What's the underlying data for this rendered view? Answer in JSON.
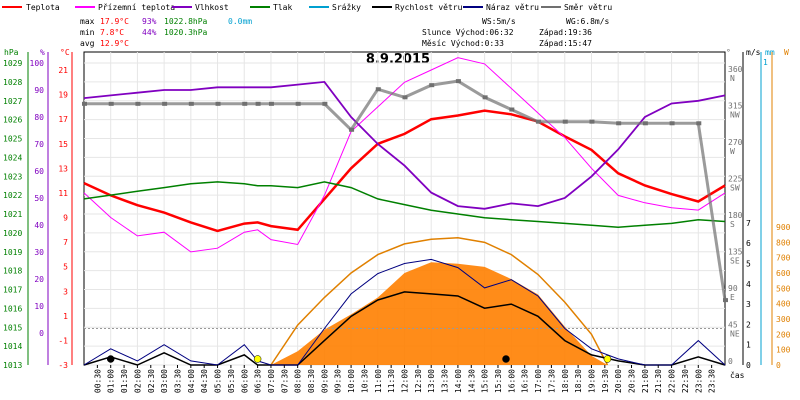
{
  "chart_data": {
    "type": "line",
    "title": "8.9.2015",
    "legend": [
      {
        "label": "Teplota",
        "color": "#ff0000"
      },
      {
        "label": "Přízemní teplota",
        "color": "#ff00ff"
      },
      {
        "label": "Vlhkost",
        "color": "#8000c0"
      },
      {
        "label": "Tlak",
        "color": "#008000"
      },
      {
        "label": "Srážky",
        "color": "#00a0d0"
      },
      {
        "label": "Rychlost větru",
        "color": "#000000"
      },
      {
        "label": "Náraz větru",
        "color": "#000080"
      },
      {
        "label": "Směr větru",
        "color": "#707070"
      }
    ],
    "stats": {
      "max": {
        "label": "max",
        "temp": "17.9°C",
        "hum": "93%",
        "press": "1022.8hPa",
        "rain": "0.0mm"
      },
      "min": {
        "label": "min",
        "temp": "7.8°C",
        "hum": "44%",
        "press": "1020.3hPa"
      },
      "avg": {
        "label": "avg",
        "temp": "12.9°C"
      }
    },
    "wind_info": {
      "ws": "WS:5m/s",
      "wg": "WG:6.8m/s"
    },
    "sun_info": {
      "rise": "Slunce Východ:06:32",
      "set": "Západ:19:36"
    },
    "moon_info": {
      "rise": "Měsíc Východ:0:33",
      "set": "Západ:15:47"
    },
    "axes": {
      "hpa_label": "hPa",
      "pct_label": "%",
      "degc_label": "°C",
      "deg_label": "°",
      "ms_label": "m/s",
      "mm_label": "mm",
      "w_label": "W",
      "time_label": "čas",
      "hpa_ticks": [
        "1029",
        "1028",
        "1027",
        "1026",
        "1025",
        "1024",
        "1023",
        "1022",
        "1021",
        "1020",
        "1019",
        "1018",
        "1017",
        "1016",
        "1015",
        "1014",
        "1013"
      ],
      "pct_ticks": [
        "100",
        "90",
        "80",
        "70",
        "60",
        "50",
        "40",
        "30",
        "20",
        "10",
        "0"
      ],
      "degc_ticks": [
        "21",
        "19",
        "17",
        "15",
        "13",
        "11",
        "9",
        "7",
        "5",
        "3",
        "1",
        "-1",
        "-3"
      ],
      "dir_ticks": [
        {
          "deg": "360",
          "dir": "N"
        },
        {
          "deg": "315",
          "dir": "NW"
        },
        {
          "deg": "270",
          "dir": "W"
        },
        {
          "deg": "225",
          "dir": "SW"
        },
        {
          "deg": "180",
          "dir": "S"
        },
        {
          "deg": "135",
          "dir": "SE"
        },
        {
          "deg": "90",
          "dir": "E"
        },
        {
          "deg": "45",
          "dir": "NE"
        },
        {
          "deg": "0",
          "dir": ""
        }
      ],
      "ms_ticks": [
        "7",
        "6",
        "5",
        "4",
        "3",
        "2",
        "1",
        "0"
      ],
      "w_ticks": [
        "900",
        "800",
        "700",
        "600",
        "500",
        "400",
        "300",
        "200",
        "100",
        "0"
      ],
      "ms_top": "1",
      "time_ticks": [
        "00:30",
        "01:00",
        "01:30",
        "02:00",
        "02:30",
        "03:00",
        "03:30",
        "04:00",
        "04:30",
        "05:00",
        "05:30",
        "06:00",
        "06:30",
        "07:00",
        "07:30",
        "08:00",
        "08:30",
        "09:00",
        "09:30",
        "10:00",
        "10:30",
        "11:00",
        "11:30",
        "12:00",
        "12:30",
        "13:00",
        "13:30",
        "14:00",
        "14:30",
        "15:00",
        "15:30",
        "16:00",
        "16:30",
        "17:00",
        "17:30",
        "18:00",
        "18:30",
        "19:00",
        "19:30",
        "20:00",
        "20:30",
        "21:00",
        "21:30",
        "22:00",
        "22:30",
        "23:00",
        "23:30"
      ]
    },
    "x_hours": [
      0,
      1,
      2,
      3,
      4,
      5,
      6,
      6.5,
      7,
      8,
      9,
      10,
      11,
      12,
      13,
      14,
      15,
      16,
      17,
      18,
      19,
      20,
      21,
      22,
      23,
      24
    ],
    "series": [
      {
        "name": "Teplota",
        "unit": "°C",
        "color": "#ff0000",
        "values": [
          11.8,
          10.8,
          10.0,
          9.4,
          8.6,
          7.9,
          8.5,
          8.6,
          8.3,
          8.0,
          10.5,
          13.0,
          15.0,
          15.8,
          17.0,
          17.3,
          17.7,
          17.4,
          16.8,
          15.6,
          14.5,
          12.6,
          11.6,
          10.9,
          10.3,
          11.6
        ]
      },
      {
        "name": "Přízemní teplota",
        "unit": "°C",
        "color": "#ff00ff",
        "values": [
          11.0,
          9.0,
          7.5,
          7.8,
          6.2,
          6.5,
          7.8,
          8.0,
          7.2,
          6.8,
          10.8,
          16.0,
          18.0,
          20.0,
          21.0,
          22.0,
          21.5,
          19.5,
          17.5,
          15.5,
          13.0,
          10.8,
          10.2,
          9.8,
          9.6,
          11.0
        ]
      },
      {
        "name": "Vlhkost",
        "unit": "%",
        "color": "#8000c0",
        "values": [
          87,
          88,
          89,
          90,
          90,
          91,
          91,
          91,
          91,
          92,
          93,
          80,
          70,
          62,
          52,
          47,
          46,
          48,
          47,
          50,
          58,
          68,
          80,
          85,
          86,
          88
        ]
      },
      {
        "name": "Tlak",
        "unit": "hPa",
        "color": "#008000",
        "values": [
          1021.8,
          1022.0,
          1022.2,
          1022.4,
          1022.6,
          1022.7,
          1022.6,
          1022.5,
          1022.5,
          1022.4,
          1022.7,
          1022.4,
          1021.8,
          1021.5,
          1021.2,
          1021.0,
          1020.8,
          1020.7,
          1020.6,
          1020.5,
          1020.4,
          1020.3,
          1020.4,
          1020.5,
          1020.7,
          1020.6
        ]
      },
      {
        "name": "Rychlost větru",
        "unit": "m/s",
        "color": "#000000",
        "values": [
          0,
          0.4,
          0,
          0.6,
          0,
          0,
          0.5,
          0,
          0,
          0,
          1.2,
          2.4,
          3.2,
          3.6,
          3.5,
          3.4,
          2.8,
          3.0,
          2.4,
          1.2,
          0.5,
          0.2,
          0,
          0,
          0.4,
          0
        ]
      },
      {
        "name": "Náraz větru",
        "unit": "m/s",
        "color": "#000080",
        "values": [
          0,
          0.8,
          0.2,
          1.0,
          0.2,
          0,
          1.0,
          0.2,
          0,
          0,
          1.8,
          3.5,
          4.5,
          5.0,
          5.2,
          4.8,
          3.8,
          4.2,
          3.4,
          1.8,
          0.8,
          0.3,
          0,
          0,
          1.2,
          0
        ]
      },
      {
        "name": "Směr větru",
        "unit": "°",
        "color": "#707070",
        "values": [
          322,
          322,
          322,
          322,
          322,
          322,
          322,
          322,
          322,
          322,
          322,
          290,
          340,
          330,
          345,
          350,
          330,
          315,
          300,
          300,
          300,
          298,
          298,
          298,
          298,
          80
        ]
      }
    ],
    "solar": {
      "name": "Solar",
      "unit": "W",
      "hours": [
        7,
        8,
        9,
        10,
        11,
        12,
        13,
        14,
        15,
        16,
        17,
        18,
        19,
        19.6
      ],
      "values": [
        0,
        90,
        230,
        330,
        440,
        600,
        670,
        660,
        640,
        560,
        460,
        250,
        60,
        0
      ],
      "max_values": [
        0,
        260,
        440,
        600,
        720,
        790,
        820,
        830,
        800,
        720,
        590,
        410,
        200,
        0
      ]
    },
    "points": [
      {
        "x": 1.0,
        "color": "#000000",
        "name": "moon-rise-marker"
      },
      {
        "x": 6.5,
        "color": "#ffff00",
        "name": "sunrise-marker"
      },
      {
        "x": 15.8,
        "color": "#000000",
        "name": "moon-set-marker"
      },
      {
        "x": 19.6,
        "color": "#ffff00",
        "name": "sunset-marker"
      }
    ]
  }
}
